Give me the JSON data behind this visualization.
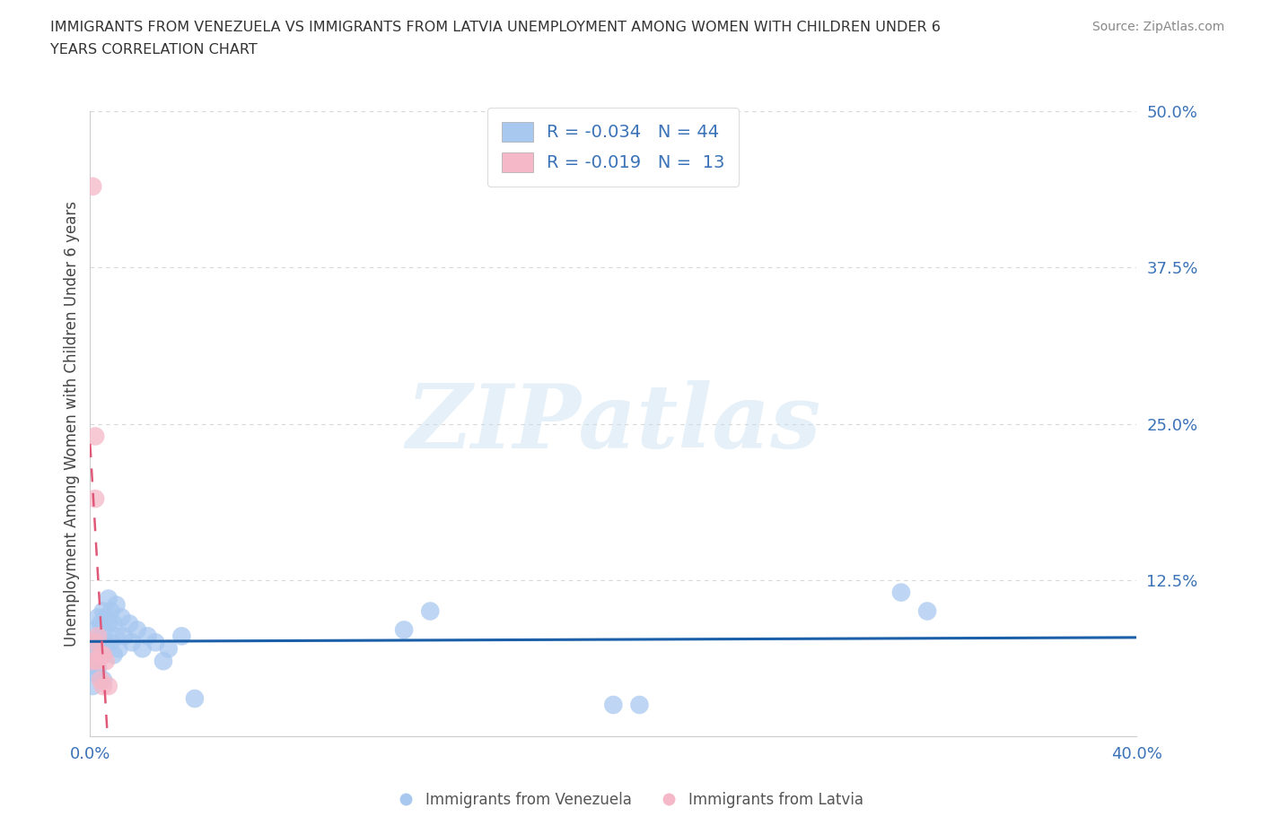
{
  "title_line1": "IMMIGRANTS FROM VENEZUELA VS IMMIGRANTS FROM LATVIA UNEMPLOYMENT AMONG WOMEN WITH CHILDREN UNDER 6",
  "title_line2": "YEARS CORRELATION CHART",
  "source": "Source: ZipAtlas.com",
  "ylabel": "Unemployment Among Women with Children Under 6 years",
  "xlim": [
    0.0,
    0.4
  ],
  "ylim": [
    0.0,
    0.5
  ],
  "xticks": [
    0.0,
    0.1,
    0.2,
    0.3,
    0.4
  ],
  "yticks": [
    0.0,
    0.125,
    0.25,
    0.375,
    0.5
  ],
  "background_color": "#ffffff",
  "grid_color": "#d8d8d8",
  "watermark_text": "ZIPatlas",
  "venezuela_color": "#a8c8f0",
  "latvia_color": "#f5b8c8",
  "trendline_venezuela_color": "#1a5fa8",
  "trendline_latvia_color": "#e05878",
  "legend_R_venezuela": "-0.034",
  "legend_N_venezuela": "44",
  "legend_R_latvia": "-0.019",
  "legend_N_latvia": "13",
  "venezuela_x": [
    0.001,
    0.001,
    0.001,
    0.002,
    0.002,
    0.002,
    0.003,
    0.003,
    0.003,
    0.004,
    0.004,
    0.005,
    0.005,
    0.005,
    0.005,
    0.006,
    0.006,
    0.007,
    0.007,
    0.008,
    0.008,
    0.009,
    0.009,
    0.01,
    0.01,
    0.011,
    0.012,
    0.013,
    0.015,
    0.016,
    0.018,
    0.02,
    0.022,
    0.025,
    0.028,
    0.03,
    0.035,
    0.04,
    0.12,
    0.13,
    0.2,
    0.21,
    0.31,
    0.32
  ],
  "venezuela_y": [
    0.075,
    0.055,
    0.04,
    0.085,
    0.065,
    0.05,
    0.095,
    0.075,
    0.055,
    0.09,
    0.07,
    0.1,
    0.085,
    0.065,
    0.045,
    0.095,
    0.075,
    0.11,
    0.09,
    0.1,
    0.075,
    0.09,
    0.065,
    0.105,
    0.08,
    0.07,
    0.095,
    0.08,
    0.09,
    0.075,
    0.085,
    0.07,
    0.08,
    0.075,
    0.06,
    0.07,
    0.08,
    0.03,
    0.085,
    0.1,
    0.025,
    0.025,
    0.115,
    0.1
  ],
  "latvia_x": [
    0.001,
    0.001,
    0.002,
    0.002,
    0.002,
    0.003,
    0.003,
    0.004,
    0.004,
    0.005,
    0.005,
    0.006,
    0.007
  ],
  "latvia_y": [
    0.44,
    0.06,
    0.24,
    0.19,
    0.075,
    0.08,
    0.06,
    0.065,
    0.045,
    0.065,
    0.04,
    0.06,
    0.04
  ]
}
